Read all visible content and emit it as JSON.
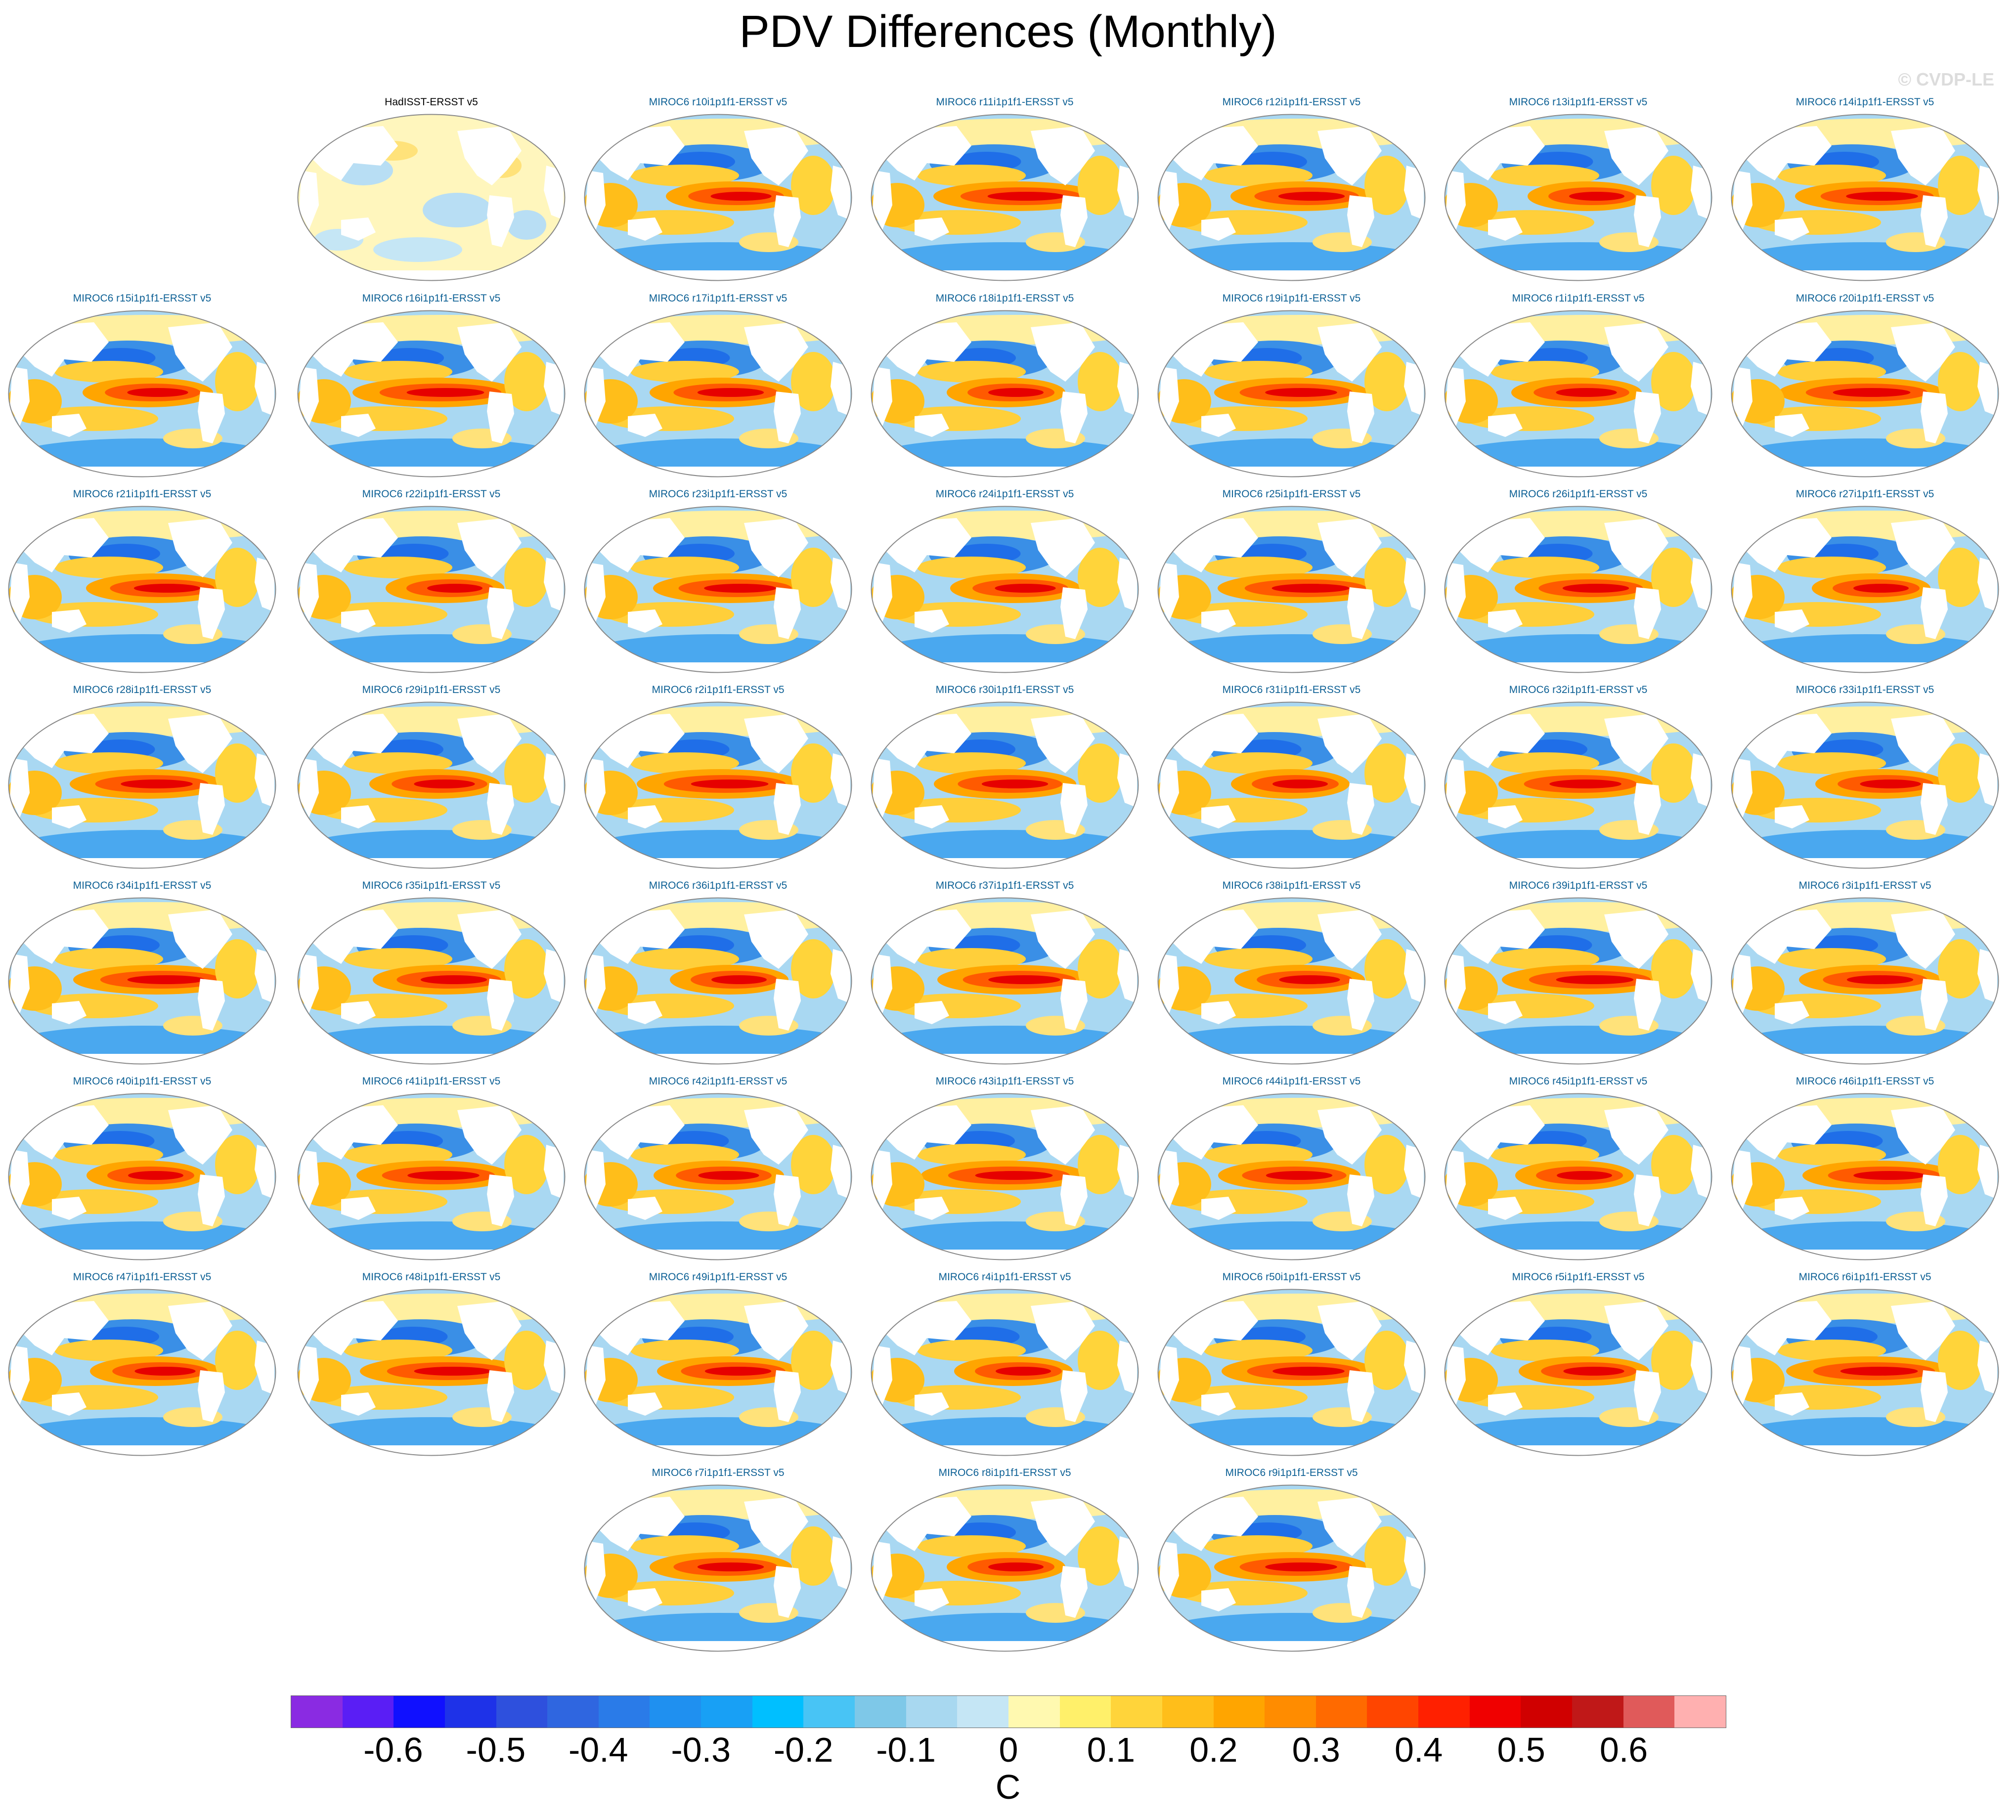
{
  "title": "PDV Differences (Monthly)",
  "copyright": "© CVDP-LE",
  "units": "C",
  "rows": [
    [
      "",
      "HadISST-ERSST v5",
      "MIROC6 r10i1p1f1-ERSST v5",
      "MIROC6 r11i1p1f1-ERSST v5",
      "MIROC6 r12i1p1f1-ERSST v5",
      "MIROC6 r13i1p1f1-ERSST v5",
      "MIROC6 r14i1p1f1-ERSST v5"
    ],
    [
      "MIROC6 r15i1p1f1-ERSST v5",
      "MIROC6 r16i1p1f1-ERSST v5",
      "MIROC6 r17i1p1f1-ERSST v5",
      "MIROC6 r18i1p1f1-ERSST v5",
      "MIROC6 r19i1p1f1-ERSST v5",
      "MIROC6 r1i1p1f1-ERSST v5",
      "MIROC6 r20i1p1f1-ERSST v5"
    ],
    [
      "MIROC6 r21i1p1f1-ERSST v5",
      "MIROC6 r22i1p1f1-ERSST v5",
      "MIROC6 r23i1p1f1-ERSST v5",
      "MIROC6 r24i1p1f1-ERSST v5",
      "MIROC6 r25i1p1f1-ERSST v5",
      "MIROC6 r26i1p1f1-ERSST v5",
      "MIROC6 r27i1p1f1-ERSST v5"
    ],
    [
      "MIROC6 r28i1p1f1-ERSST v5",
      "MIROC6 r29i1p1f1-ERSST v5",
      "MIROC6 r2i1p1f1-ERSST v5",
      "MIROC6 r30i1p1f1-ERSST v5",
      "MIROC6 r31i1p1f1-ERSST v5",
      "MIROC6 r32i1p1f1-ERSST v5",
      "MIROC6 r33i1p1f1-ERSST v5"
    ],
    [
      "MIROC6 r34i1p1f1-ERSST v5",
      "MIROC6 r35i1p1f1-ERSST v5",
      "MIROC6 r36i1p1f1-ERSST v5",
      "MIROC6 r37i1p1f1-ERSST v5",
      "MIROC6 r38i1p1f1-ERSST v5",
      "MIROC6 r39i1p1f1-ERSST v5",
      "MIROC6 r3i1p1f1-ERSST v5"
    ],
    [
      "MIROC6 r40i1p1f1-ERSST v5",
      "MIROC6 r41i1p1f1-ERSST v5",
      "MIROC6 r42i1p1f1-ERSST v5",
      "MIROC6 r43i1p1f1-ERSST v5",
      "MIROC6 r44i1p1f1-ERSST v5",
      "MIROC6 r45i1p1f1-ERSST v5",
      "MIROC6 r46i1p1f1-ERSST v5"
    ],
    [
      "MIROC6 r47i1p1f1-ERSST v5",
      "MIROC6 r48i1p1f1-ERSST v5",
      "MIROC6 r49i1p1f1-ERSST v5",
      "MIROC6 r4i1p1f1-ERSST v5",
      "MIROC6 r50i1p1f1-ERSST v5",
      "MIROC6 r5i1p1f1-ERSST v5",
      "MIROC6 r6i1p1f1-ERSST v5"
    ],
    [
      "",
      "",
      "MIROC6 r7i1p1f1-ERSST v5",
      "MIROC6 r8i1p1f1-ERSST v5",
      "MIROC6 r9i1p1f1-ERSST v5",
      "",
      ""
    ]
  ],
  "colorbar": {
    "colors": [
      "#8a2be2",
      "#5a1ef5",
      "#1010ff",
      "#1e32e8",
      "#2e50dd",
      "#2f66e0",
      "#2a7be8",
      "#1f90f0",
      "#18a0f5",
      "#00bfff",
      "#48c4f5",
      "#7ec8e8",
      "#a8d8f0",
      "#c5e6f5",
      "#fff9b0",
      "#fff06a",
      "#ffd43a",
      "#ffbe1a",
      "#ffa500",
      "#ff8c00",
      "#ff6a00",
      "#ff4500",
      "#ff2000",
      "#f00000",
      "#d00000",
      "#c01818",
      "#e05a5a",
      "#ffb0b0"
    ],
    "ticks": [
      "-0.6",
      "-0.5",
      "-0.4",
      "-0.3",
      "-0.2",
      "-0.1",
      "0",
      "0.1",
      "0.2",
      "0.3",
      "0.4",
      "0.5",
      "0.6"
    ]
  }
}
